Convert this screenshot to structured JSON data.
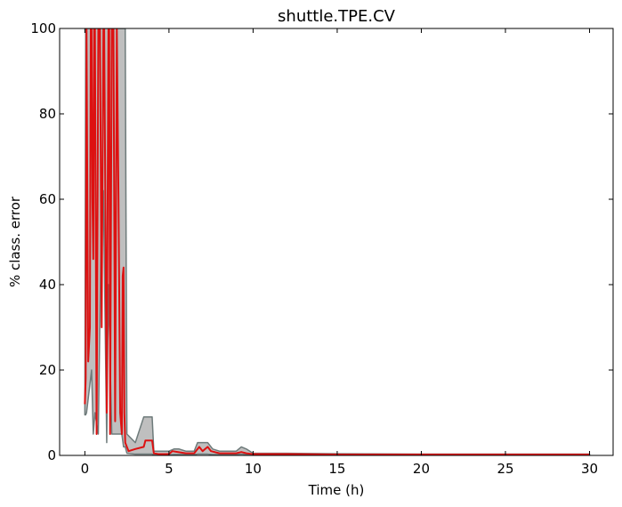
{
  "chart_data": {
    "type": "line",
    "title": "shuttle.TPE.CV",
    "xlabel": "Time (h)",
    "ylabel": "% class. error",
    "xlim": [
      -1.5,
      31.4
    ],
    "ylim": [
      0,
      100
    ],
    "xticks": [
      0,
      5,
      10,
      15,
      20,
      25,
      30
    ],
    "yticks": [
      0,
      20,
      40,
      60,
      80,
      100
    ],
    "grid": false,
    "colors": {
      "median": "#dd1111",
      "band_fill": "#bfbfbf",
      "band_edge": "#6e7b7b"
    },
    "series": [
      {
        "role": "median",
        "x": [
          0,
          0.05,
          0.1,
          0.15,
          0.2,
          0.3,
          0.35,
          0.4,
          0.45,
          0.5,
          0.55,
          0.6,
          0.7,
          0.8,
          0.9,
          1.0,
          1.1,
          1.15,
          1.2,
          1.3,
          1.4,
          1.45,
          1.5,
          1.6,
          1.7,
          1.8,
          1.9,
          2.0,
          2.1,
          2.2,
          2.25,
          2.3,
          2.35,
          2.4,
          2.6,
          3.0,
          3.5,
          3.6,
          4.0,
          4.1,
          4.4,
          5.0,
          5.2,
          5.5,
          6.0,
          6.5,
          6.8,
          7.0,
          7.3,
          7.5,
          8.0,
          9.0,
          9.3,
          9.6,
          10.0,
          11.0,
          12.0,
          15.0,
          20.0,
          25.0,
          30.0
        ],
        "y": [
          12,
          18,
          100,
          60,
          22,
          30,
          100,
          100,
          60,
          46,
          100,
          100,
          5,
          100,
          100,
          30,
          100,
          100,
          70,
          10,
          100,
          100,
          5,
          100,
          100,
          8,
          100,
          60,
          10,
          5,
          42,
          44,
          10,
          3,
          1,
          1.5,
          2,
          3.5,
          3.5,
          0.5,
          0.3,
          0.3,
          1,
          0.8,
          0.5,
          0.5,
          2,
          1,
          2,
          1,
          0.5,
          0.5,
          0.8,
          0.5,
          0.3,
          0.3,
          0.3,
          0.2,
          0.2,
          0.2,
          0.2
        ]
      },
      {
        "role": "upper-bound",
        "x": [
          0,
          0.05,
          0.1,
          0.4,
          0.5,
          0.6,
          0.8,
          1.0,
          1.1,
          1.3,
          1.4,
          1.6,
          1.8,
          1.9,
          2.2,
          2.3,
          2.4,
          2.5,
          3.0,
          3.5,
          3.6,
          4.0,
          4.1,
          5.0,
          5.3,
          5.6,
          6.0,
          6.5,
          6.7,
          7.0,
          7.3,
          7.6,
          8.0,
          9.0,
          9.3,
          9.6,
          10.0,
          11.0,
          12.0,
          15.0,
          20.0,
          25.0,
          30.0
        ],
        "y": [
          9.5,
          100,
          100,
          100,
          100,
          100,
          100,
          100,
          100,
          100,
          100,
          100,
          100,
          100,
          100,
          100,
          100,
          5,
          3,
          9,
          9,
          9,
          1,
          1,
          1.5,
          1.5,
          1,
          1,
          3,
          3,
          3,
          1.5,
          1,
          1,
          2,
          1.5,
          0.5,
          0.5,
          0.5,
          0.4,
          0.3,
          0.3,
          0.3
        ]
      },
      {
        "role": "lower-bound",
        "x": [
          0,
          0.05,
          0.1,
          0.4,
          0.5,
          0.6,
          0.8,
          1.0,
          1.1,
          1.3,
          1.4,
          1.6,
          1.8,
          1.9,
          2.2,
          2.3,
          2.4,
          2.5,
          3.0,
          3.5,
          3.6,
          4.0,
          4.1,
          5.0,
          5.3,
          5.6,
          6.0,
          6.5,
          6.7,
          7.0,
          7.3,
          7.6,
          8.0,
          9.0,
          9.3,
          9.6,
          10.0,
          11.0,
          12.0,
          15.0,
          20.0,
          25.0,
          30.0
        ],
        "y": [
          9.5,
          9.5,
          10,
          20,
          5,
          10,
          5,
          62,
          62,
          3,
          40,
          5,
          5,
          5,
          5,
          2,
          2,
          0.5,
          0.3,
          0.3,
          0.3,
          0.3,
          0.1,
          0.1,
          0.2,
          0.2,
          0.2,
          0.2,
          0.3,
          0.3,
          0.3,
          0.2,
          0.2,
          0.2,
          0.3,
          0.2,
          0.1,
          0.1,
          0.1,
          0.1,
          0.1,
          0.1,
          0.1
        ]
      }
    ]
  }
}
